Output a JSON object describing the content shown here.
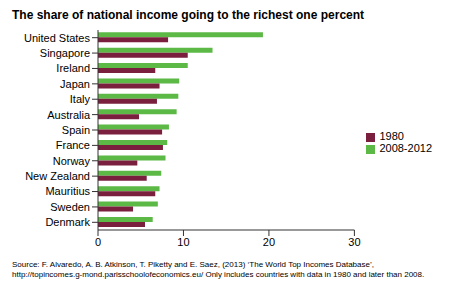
{
  "chart_data": {
    "type": "bar",
    "orientation": "horizontal",
    "title": "The share of national income going to the richest one percent",
    "source": "Source: F. Alvaredo, A. B. Atkinson, T. Piketty and E. Saez, (2013) ‘The World Top Incomes Database’, http://topincomes.g-mond.parisschoolofeconomics.eu/  Only includes countries with data in 1980 and later than 2008.",
    "categories": [
      "United States",
      "Singapore",
      "Ireland",
      "Japan",
      "Italy",
      "Australia",
      "Spain",
      "France",
      "Norway",
      "New Zealand",
      "Mauritius",
      "Sweden",
      "Denmark"
    ],
    "series": [
      {
        "name": "2008-2012",
        "color": "#5cb946",
        "values": [
          19.3,
          13.4,
          10.5,
          9.5,
          9.4,
          9.2,
          8.3,
          8.1,
          7.9,
          7.4,
          7.2,
          7.0,
          6.4
        ]
      },
      {
        "name": "1980",
        "color": "#7a1f3d",
        "values": [
          8.2,
          10.5,
          6.7,
          7.2,
          6.9,
          4.8,
          7.5,
          7.6,
          4.6,
          5.7,
          6.7,
          4.1,
          5.5
        ]
      }
    ],
    "xlim": [
      0,
      30
    ],
    "xticks": [
      0,
      10,
      20,
      30
    ],
    "legend": "right",
    "grid": false
  }
}
